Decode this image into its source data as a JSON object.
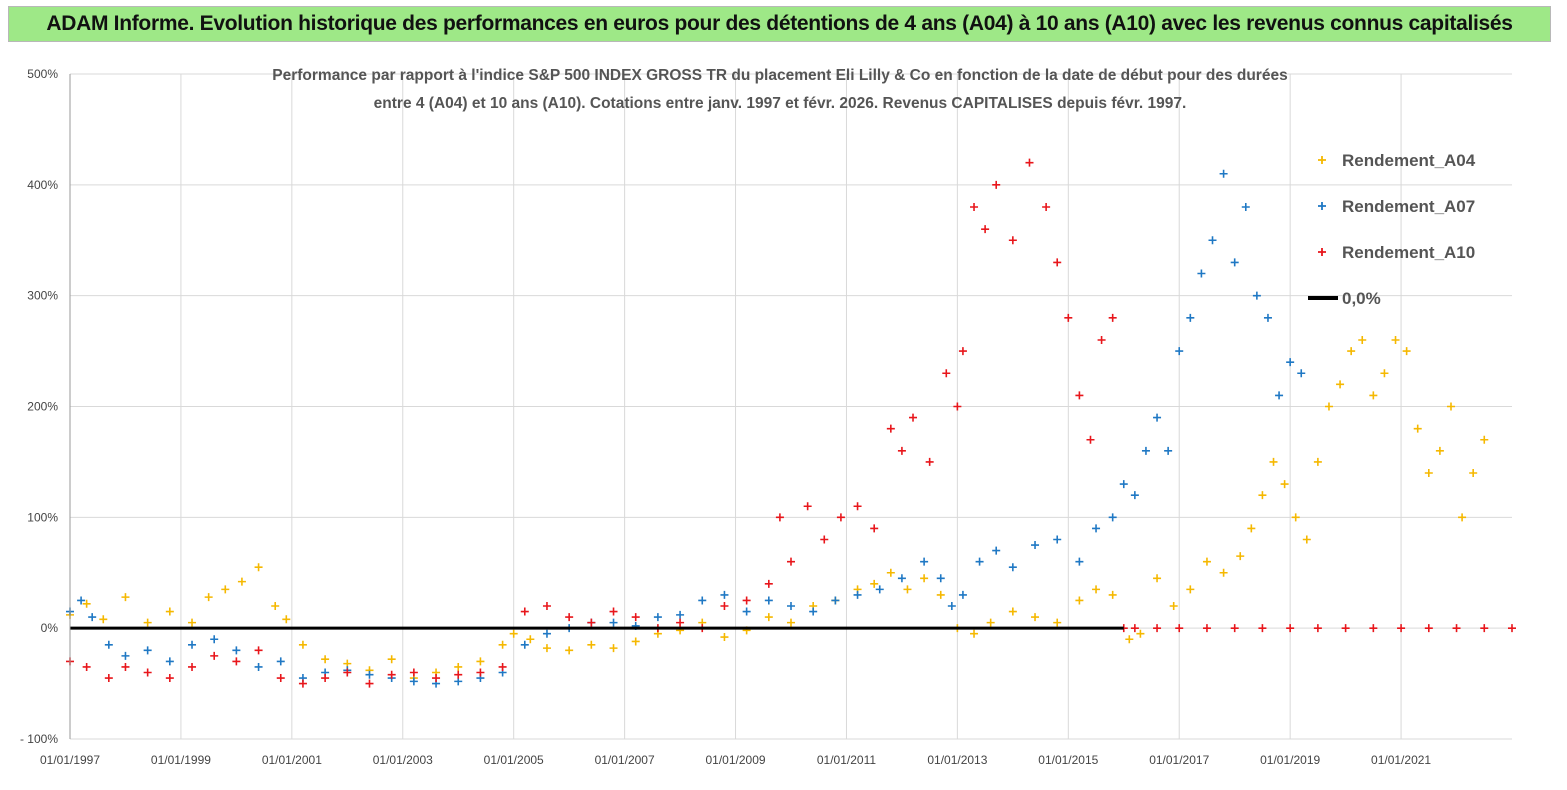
{
  "banner": {
    "title": "ADAM Informe. Evolution historique des performances en euros pour des détentions de 4 ans (A04) à 10 ans (A10) avec les revenus connus capitalisés"
  },
  "chart_data": {
    "type": "scatter",
    "title_line1": "Performance par rapport à l'indice S&P 500 INDEX GROSS TR  du placement Eli Lilly & Co en fonction de la date de début pour des durées",
    "title_line2": "entre 4 (A04) et 10 ans (A10). Cotations entre janv. 1997 et févr. 2026. Revenus CAPITALISES depuis févr. 1997.",
    "xlabel": "",
    "ylabel": "",
    "xlim": [
      1997.0,
      2023.0
    ],
    "ylim": [
      -100,
      500
    ],
    "y_ticks": [
      -100,
      0,
      100,
      200,
      300,
      400,
      500
    ],
    "y_tick_labels": [
      "- 100%",
      "0%",
      "100%",
      "200%",
      "300%",
      "400%",
      "500%"
    ],
    "x_ticks": [
      1997,
      1999,
      2001,
      2003,
      2005,
      2007,
      2009,
      2011,
      2013,
      2015,
      2017,
      2019,
      2021
    ],
    "x_tick_labels": [
      "01/01/1997",
      "01/01/1999",
      "01/01/2001",
      "01/01/2003",
      "01/01/2005",
      "01/01/2007",
      "01/01/2009",
      "01/01/2011",
      "01/01/2013",
      "01/01/2015",
      "01/01/2017",
      "01/01/2019",
      "01/01/2021"
    ],
    "grid": true,
    "legend_position": "top-right",
    "series": [
      {
        "name": "Rendement_A04",
        "color": "#f5b800",
        "marker": "+",
        "x": [
          1997.0,
          1997.3,
          1997.6,
          1998.0,
          1998.4,
          1998.8,
          1999.2,
          1999.5,
          1999.8,
          2000.1,
          2000.4,
          2000.7,
          2000.9,
          2001.2,
          2001.6,
          2002.0,
          2002.4,
          2002.8,
          2003.2,
          2003.6,
          2004.0,
          2004.4,
          2004.8,
          2005.0,
          2005.3,
          2005.6,
          2006.0,
          2006.4,
          2006.8,
          2007.2,
          2007.6,
          2008.0,
          2008.4,
          2008.8,
          2009.2,
          2009.6,
          2010.0,
          2010.4,
          2010.8,
          2011.2,
          2011.5,
          2011.8,
          2012.1,
          2012.4,
          2012.7,
          2013.0,
          2013.3,
          2013.6,
          2014.0,
          2014.4,
          2014.8,
          2015.2,
          2015.5,
          2015.8,
          2016.1,
          2016.3,
          2016.6,
          2016.9,
          2017.2,
          2017.5,
          2017.8,
          2018.1,
          2018.3,
          2018.5,
          2018.7,
          2018.9,
          2019.1,
          2019.3,
          2019.5,
          2019.7,
          2019.9,
          2020.1,
          2020.3,
          2020.5,
          2020.7,
          2020.9,
          2021.1,
          2021.3,
          2021.5,
          2021.7,
          2021.9,
          2022.1,
          2022.3,
          2022.5
        ],
        "y": [
          12,
          22,
          8,
          28,
          5,
          15,
          5,
          28,
          35,
          42,
          55,
          20,
          8,
          -15,
          -28,
          -32,
          -38,
          -28,
          -45,
          -40,
          -35,
          -30,
          -15,
          -5,
          -10,
          -18,
          -20,
          -15,
          -18,
          -12,
          -5,
          -2,
          5,
          -8,
          -2,
          10,
          5,
          20,
          25,
          35,
          40,
          50,
          35,
          45,
          30,
          0,
          -5,
          5,
          15,
          10,
          5,
          25,
          35,
          30,
          -10,
          -5,
          45,
          20,
          35,
          60,
          50,
          65,
          90,
          120,
          150,
          130,
          100,
          80,
          150,
          200,
          220,
          250,
          260,
          210,
          230,
          260,
          250,
          180,
          140,
          160,
          200,
          100,
          140,
          170
        ]
      },
      {
        "name": "Rendement_A07",
        "color": "#1f78c4",
        "marker": "+",
        "x": [
          1997.0,
          1997.2,
          1997.4,
          1997.7,
          1998.0,
          1998.4,
          1998.8,
          1999.2,
          1999.6,
          2000.0,
          2000.4,
          2000.8,
          2001.2,
          2001.6,
          2002.0,
          2002.4,
          2002.8,
          2003.2,
          2003.6,
          2004.0,
          2004.4,
          2004.8,
          2005.2,
          2005.6,
          2006.0,
          2006.4,
          2006.8,
          2007.2,
          2007.6,
          2008.0,
          2008.4,
          2008.8,
          2009.2,
          2009.6,
          2010.0,
          2010.4,
          2010.8,
          2011.2,
          2011.6,
          2012.0,
          2012.4,
          2012.7,
          2012.9,
          2013.1,
          2013.4,
          2013.7,
          2014.0,
          2014.4,
          2014.8,
          2015.2,
          2015.5,
          2015.8,
          2016.0,
          2016.2,
          2016.4,
          2016.6,
          2016.8,
          2017.0,
          2017.2,
          2017.4,
          2017.6,
          2017.8,
          2018.0,
          2018.2,
          2018.4,
          2018.6,
          2018.8,
          2019.0,
          2019.2
        ],
        "y": [
          15,
          25,
          10,
          -15,
          -25,
          -20,
          -30,
          -15,
          -10,
          -20,
          -35,
          -30,
          -45,
          -40,
          -38,
          -42,
          -45,
          -48,
          -50,
          -48,
          -45,
          -40,
          -15,
          -5,
          0,
          5,
          5,
          2,
          10,
          12,
          25,
          30,
          15,
          25,
          20,
          15,
          25,
          30,
          35,
          45,
          60,
          45,
          20,
          30,
          60,
          70,
          55,
          75,
          80,
          60,
          90,
          100,
          130,
          120,
          160,
          190,
          160,
          250,
          280,
          320,
          350,
          410,
          330,
          380,
          300,
          280,
          210,
          240,
          230
        ]
      },
      {
        "name": "Rendement_A10",
        "color": "#e8161b",
        "marker": "+",
        "x": [
          1997.0,
          1997.3,
          1997.7,
          1998.0,
          1998.4,
          1998.8,
          1999.2,
          1999.6,
          2000.0,
          2000.4,
          2000.8,
          2001.2,
          2001.6,
          2002.0,
          2002.4,
          2002.8,
          2003.2,
          2003.6,
          2004.0,
          2004.4,
          2004.8,
          2005.2,
          2005.6,
          2006.0,
          2006.4,
          2006.8,
          2007.2,
          2007.6,
          2008.0,
          2008.4,
          2008.8,
          2009.2,
          2009.6,
          2009.8,
          2010.0,
          2010.3,
          2010.6,
          2010.9,
          2011.2,
          2011.5,
          2011.8,
          2012.0,
          2012.2,
          2012.5,
          2012.8,
          2013.0,
          2013.1,
          2013.3,
          2013.5,
          2013.7,
          2014.0,
          2014.3,
          2014.6,
          2014.8,
          2015.0,
          2015.2,
          2015.4,
          2015.6,
          2015.8,
          2016.0,
          2016.2,
          2016.6,
          2017.0,
          2017.5,
          2018.0,
          2018.5,
          2019.0,
          2019.5,
          2020.0,
          2020.5,
          2021.0,
          2021.5,
          2022.0,
          2022.5,
          2023.0
        ],
        "y": [
          -30,
          -35,
          -45,
          -35,
          -40,
          -45,
          -35,
          -25,
          -30,
          -20,
          -45,
          -50,
          -45,
          -40,
          -50,
          -42,
          -40,
          -45,
          -42,
          -40,
          -35,
          15,
          20,
          10,
          5,
          15,
          10,
          0,
          5,
          0,
          20,
          25,
          40,
          100,
          60,
          110,
          80,
          100,
          110,
          90,
          180,
          160,
          190,
          150,
          230,
          200,
          250,
          380,
          360,
          400,
          350,
          420,
          380,
          330,
          280,
          210,
          170,
          260,
          280,
          0,
          0,
          0,
          0,
          0,
          0,
          0,
          0,
          0,
          0,
          0,
          0,
          0,
          0,
          0,
          0
        ]
      },
      {
        "name": "0,0%",
        "color": "#000000",
        "marker": "line",
        "x": [
          1997.0,
          2016.0
        ],
        "y": [
          0,
          0
        ]
      }
    ]
  }
}
